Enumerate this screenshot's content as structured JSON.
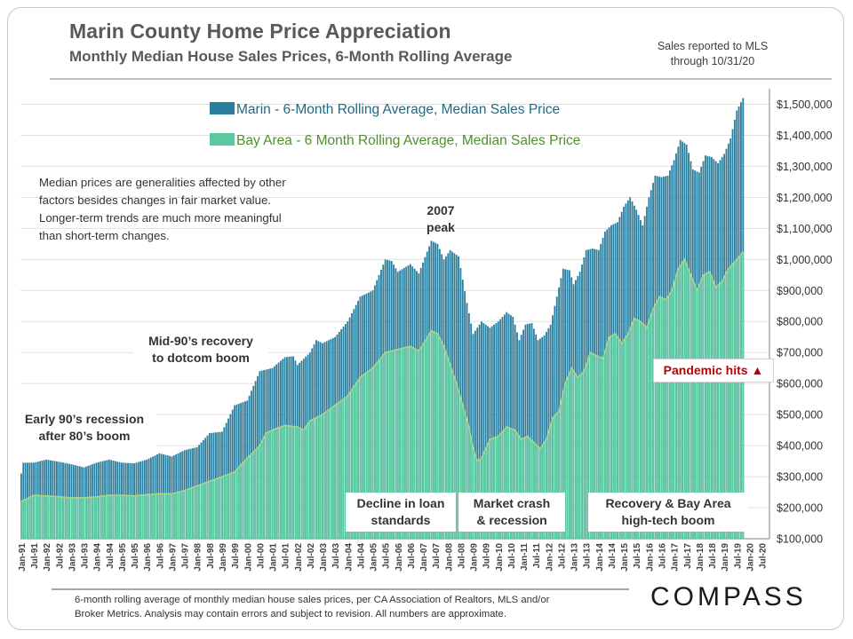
{
  "header": {
    "title": "Marin County Home Price Appreciation",
    "subtitle": "Monthly Median House Sales Prices, 6-Month Rolling Average",
    "source_note_line1": "Sales reported to MLS",
    "source_note_line2": "through 10/31/20"
  },
  "annotations": {
    "note_line1": "Median prices are generalities affected by other",
    "note_line2": "factors besides changes in fair market value.",
    "note_line3": "Longer-term trends are much more meaningful",
    "note_line4": "than short-term changes.",
    "peak_line1": "2007",
    "peak_line2": "peak",
    "mid90s_line1": "Mid-90’s recovery",
    "mid90s_line2": "to dotcom boom",
    "early90s_line1": "Early 90’s recession",
    "early90s_line2": "after 80’s boom",
    "decline_line1": "Decline in loan",
    "decline_line2": "standards",
    "crash_line1": "Market crash",
    "crash_line2": "& recession",
    "recovery_line1": "Recovery & Bay Area",
    "recovery_line2": "high-tech boom",
    "pandemic": "Pandemic hits ▲"
  },
  "footer": {
    "line1": "6-month rolling average of monthly median house sales prices, per CA Association of Realtors, MLS and/or",
    "line2": "Broker Metrics.  Analysis  may contain errors and subject to revision.  All numbers are approximate."
  },
  "brand": "COMPASS",
  "colors": {
    "marin": "#2a7f9e",
    "marin_dark": "#1f6580",
    "bay": "#5bc9a0",
    "bay_line": "#a8d58a",
    "legend_marin_text": "#1f6a86",
    "legend_bay_text": "#4f8f2e",
    "grid": "#e0e0e0"
  },
  "chart_data": {
    "type": "bar",
    "title": "Marin County Home Price Appreciation",
    "subtitle": "Monthly Median House Sales Prices, 6-Month Rolling Average",
    "start_month": "1991-01",
    "end_month": "2020-10",
    "ylim": [
      100000,
      1550000
    ],
    "yticks": [
      100000,
      200000,
      300000,
      400000,
      500000,
      600000,
      700000,
      800000,
      900000,
      1000000,
      1100000,
      1200000,
      1300000,
      1400000,
      1500000
    ],
    "ytick_labels": [
      "$100,000",
      "$200,000",
      "$300,000",
      "$400,000",
      "$500,000",
      "$600,000",
      "$700,000",
      "$800,000",
      "$900,000",
      "$1,000,000",
      "$1,100,000",
      "$1,200,000",
      "$1,300,000",
      "$1,400,000",
      "$1,500,000"
    ],
    "xtick_labels": [
      "Jan-91",
      "Jul-91",
      "Jan-92",
      "Jul-92",
      "Jan-93",
      "Jul-93",
      "Jan-94",
      "Jul-94",
      "Jan-95",
      "Jul-95",
      "Jan-96",
      "Jul-96",
      "Jan-97",
      "Jul-97",
      "Jan-98",
      "Jul-98",
      "Jan-99",
      "Jul-99",
      "Jan-00",
      "Jul-00",
      "Jan-01",
      "Jul-01",
      "Jan-02",
      "Jul-02",
      "Jan-03",
      "Jul-03",
      "Jan-04",
      "Jul-04",
      "Jan-05",
      "Jul-05",
      "Jan-06",
      "Jul-06",
      "Jan-07",
      "Jul-07",
      "Jan-08",
      "Jul-08",
      "Jan-09",
      "Jul-09",
      "Jan-10",
      "Jul-10",
      "Jan-11",
      "Jul-11",
      "Jan-12",
      "Jul-12",
      "Jan-13",
      "Jul-13",
      "Jan-14",
      "Jul-14",
      "Jan-15",
      "Jul-15",
      "Jan-16",
      "Jul-16",
      "Jan-17",
      "Jul-17",
      "Jan-18",
      "Jul-18",
      "Jan-19",
      "Jul-19",
      "Jan-20",
      "Jul-20"
    ],
    "legend_position": "top-center",
    "series": [
      {
        "name": "Marin - 6-Month Rolling Average, Median Sales Price",
        "anchors": [
          [
            0,
            310000
          ],
          [
            1,
            345000
          ],
          [
            6,
            345000
          ],
          [
            12,
            355000
          ],
          [
            18,
            348000
          ],
          [
            24,
            340000
          ],
          [
            30,
            330000
          ],
          [
            36,
            345000
          ],
          [
            42,
            355000
          ],
          [
            48,
            345000
          ],
          [
            54,
            343000
          ],
          [
            60,
            355000
          ],
          [
            66,
            375000
          ],
          [
            72,
            365000
          ],
          [
            78,
            385000
          ],
          [
            84,
            395000
          ],
          [
            90,
            440000
          ],
          [
            96,
            445000
          ],
          [
            102,
            530000
          ],
          [
            108,
            545000
          ],
          [
            114,
            640000
          ],
          [
            117,
            645000
          ],
          [
            120,
            650000
          ],
          [
            126,
            685000
          ],
          [
            130,
            688000
          ],
          [
            132,
            660000
          ],
          [
            138,
            700000
          ],
          [
            141,
            740000
          ],
          [
            144,
            730000
          ],
          [
            150,
            750000
          ],
          [
            156,
            800000
          ],
          [
            162,
            880000
          ],
          [
            168,
            900000
          ],
          [
            174,
            1000000
          ],
          [
            177,
            995000
          ],
          [
            180,
            960000
          ],
          [
            186,
            985000
          ],
          [
            190,
            955000
          ],
          [
            196,
            1060000
          ],
          [
            199,
            1050000
          ],
          [
            202,
            1000000
          ],
          [
            205,
            1030000
          ],
          [
            209,
            1010000
          ],
          [
            213,
            860000
          ],
          [
            216,
            760000
          ],
          [
            220,
            800000
          ],
          [
            224,
            780000
          ],
          [
            228,
            800000
          ],
          [
            232,
            830000
          ],
          [
            235,
            815000
          ],
          [
            238,
            740000
          ],
          [
            241,
            790000
          ],
          [
            244,
            795000
          ],
          [
            247,
            740000
          ],
          [
            250,
            755000
          ],
          [
            253,
            790000
          ],
          [
            256,
            880000
          ],
          [
            259,
            970000
          ],
          [
            262,
            965000
          ],
          [
            264,
            920000
          ],
          [
            267,
            960000
          ],
          [
            270,
            1030000
          ],
          [
            273,
            1035000
          ],
          [
            276,
            1030000
          ],
          [
            279,
            1090000
          ],
          [
            282,
            1110000
          ],
          [
            285,
            1120000
          ],
          [
            288,
            1170000
          ],
          [
            291,
            1200000
          ],
          [
            294,
            1160000
          ],
          [
            297,
            1110000
          ],
          [
            300,
            1200000
          ],
          [
            303,
            1270000
          ],
          [
            306,
            1265000
          ],
          [
            309,
            1270000
          ],
          [
            312,
            1320000
          ],
          [
            315,
            1385000
          ],
          [
            318,
            1370000
          ],
          [
            321,
            1290000
          ],
          [
            324,
            1280000
          ],
          [
            327,
            1335000
          ],
          [
            330,
            1330000
          ],
          [
            333,
            1310000
          ],
          [
            336,
            1340000
          ],
          [
            339,
            1390000
          ],
          [
            342,
            1480000
          ],
          [
            345,
            1520000
          ]
        ]
      },
      {
        "name": "Bay Area - 6 Month Rolling Average, Median Sales Price",
        "anchors": [
          [
            0,
            220000
          ],
          [
            6,
            240000
          ],
          [
            12,
            238000
          ],
          [
            18,
            235000
          ],
          [
            24,
            232000
          ],
          [
            30,
            232000
          ],
          [
            36,
            235000
          ],
          [
            42,
            240000
          ],
          [
            48,
            240000
          ],
          [
            54,
            238000
          ],
          [
            60,
            242000
          ],
          [
            66,
            245000
          ],
          [
            72,
            245000
          ],
          [
            78,
            255000
          ],
          [
            84,
            270000
          ],
          [
            90,
            285000
          ],
          [
            96,
            300000
          ],
          [
            102,
            315000
          ],
          [
            108,
            360000
          ],
          [
            114,
            400000
          ],
          [
            117,
            440000
          ],
          [
            120,
            450000
          ],
          [
            126,
            465000
          ],
          [
            132,
            460000
          ],
          [
            135,
            450000
          ],
          [
            138,
            480000
          ],
          [
            144,
            500000
          ],
          [
            150,
            530000
          ],
          [
            156,
            560000
          ],
          [
            162,
            620000
          ],
          [
            168,
            650000
          ],
          [
            174,
            700000
          ],
          [
            180,
            710000
          ],
          [
            186,
            720000
          ],
          [
            190,
            705000
          ],
          [
            196,
            770000
          ],
          [
            199,
            760000
          ],
          [
            202,
            720000
          ],
          [
            205,
            660000
          ],
          [
            208,
            600000
          ],
          [
            211,
            530000
          ],
          [
            214,
            460000
          ],
          [
            216,
            390000
          ],
          [
            218,
            350000
          ],
          [
            220,
            360000
          ],
          [
            224,
            420000
          ],
          [
            228,
            430000
          ],
          [
            232,
            460000
          ],
          [
            236,
            450000
          ],
          [
            239,
            420000
          ],
          [
            242,
            430000
          ],
          [
            245,
            410000
          ],
          [
            248,
            390000
          ],
          [
            251,
            420000
          ],
          [
            254,
            490000
          ],
          [
            257,
            510000
          ],
          [
            260,
            600000
          ],
          [
            263,
            650000
          ],
          [
            266,
            620000
          ],
          [
            269,
            640000
          ],
          [
            272,
            700000
          ],
          [
            275,
            690000
          ],
          [
            278,
            680000
          ],
          [
            281,
            750000
          ],
          [
            284,
            760000
          ],
          [
            287,
            730000
          ],
          [
            290,
            760000
          ],
          [
            293,
            810000
          ],
          [
            296,
            800000
          ],
          [
            299,
            780000
          ],
          [
            302,
            840000
          ],
          [
            305,
            880000
          ],
          [
            308,
            870000
          ],
          [
            311,
            900000
          ],
          [
            314,
            970000
          ],
          [
            317,
            1000000
          ],
          [
            320,
            950000
          ],
          [
            323,
            900000
          ],
          [
            326,
            950000
          ],
          [
            329,
            960000
          ],
          [
            332,
            910000
          ],
          [
            335,
            930000
          ],
          [
            338,
            970000
          ],
          [
            342,
            1000000
          ],
          [
            345,
            1025000
          ]
        ]
      }
    ]
  }
}
